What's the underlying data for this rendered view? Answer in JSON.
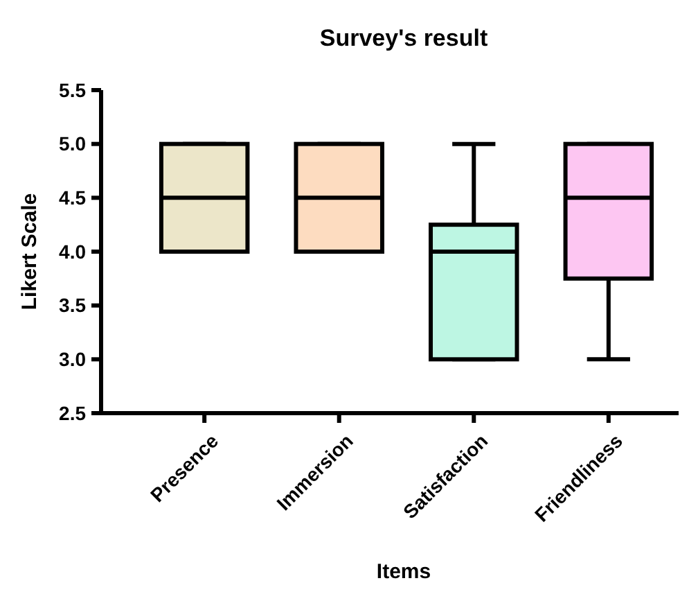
{
  "chart_data": {
    "type": "box",
    "title": "Survey's result",
    "xlabel": "Items",
    "ylabel": "Likert Scale",
    "categories": [
      "Presence",
      "Immersion",
      "Satisfaction",
      "Friendliness"
    ],
    "colors": [
      "#ece6c9",
      "#fddcc0",
      "#bdf6e3",
      "#fdc6f2"
    ],
    "boxes": [
      {
        "low": 4,
        "q1": 4,
        "median": 4.5,
        "q3": 5,
        "high": 5
      },
      {
        "low": 4,
        "q1": 4,
        "median": 4.5,
        "q3": 5,
        "high": 5
      },
      {
        "low": 3,
        "q1": 3,
        "median": 4,
        "q3": 4.25,
        "high": 5
      },
      {
        "low": 3,
        "q1": 3.75,
        "median": 4.5,
        "q3": 5,
        "high": 5
      }
    ],
    "ylim": [
      2.5,
      5.5
    ],
    "yticks": [
      {
        "value": 2.5,
        "label": "2.5"
      },
      {
        "value": 3,
        "label": "3.0"
      },
      {
        "value": 3.5,
        "label": "3.5"
      },
      {
        "value": 4,
        "label": "4.0"
      },
      {
        "value": 4.5,
        "label": "4.5"
      },
      {
        "value": 5,
        "label": "5.0"
      },
      {
        "value": 5.5,
        "label": "5.5"
      }
    ],
    "grid": false
  }
}
